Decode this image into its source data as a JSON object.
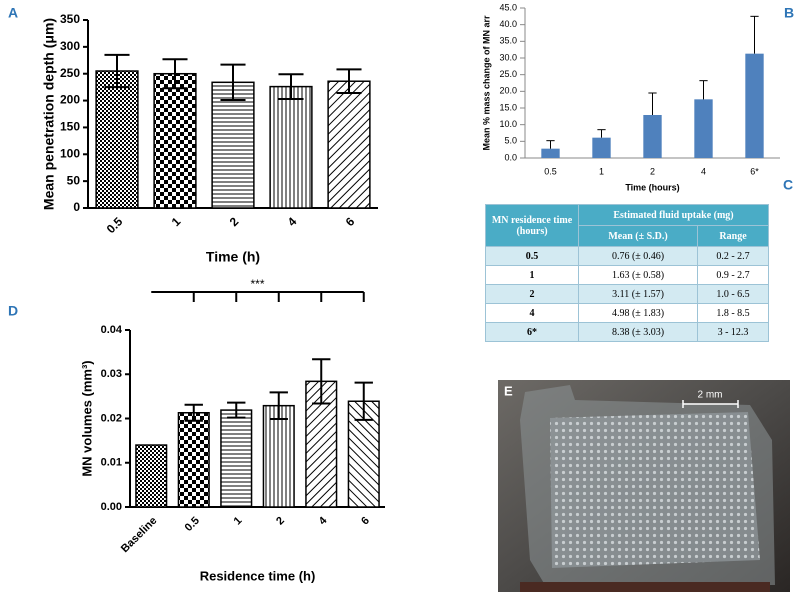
{
  "chart_data": [
    {
      "type": "bar",
      "panel": "A",
      "categories": [
        "0.5",
        "1",
        "2",
        "4",
        "6"
      ],
      "values": [
        255,
        250,
        234,
        226,
        236
      ],
      "errors": [
        30,
        27,
        33,
        23,
        22
      ],
      "ylim": [
        0,
        350
      ],
      "yticks": [
        0,
        50,
        100,
        150,
        200,
        250,
        300,
        350
      ],
      "ylabel": "Mean penetration depth (μm)",
      "xlabel": "Time (h)"
    },
    {
      "type": "bar",
      "panel": "B",
      "categories": [
        "0.5",
        "1",
        "2",
        "4",
        "6*"
      ],
      "values": [
        2.8,
        6.1,
        12.9,
        17.6,
        31.3
      ],
      "errors": [
        2.4,
        2.4,
        6.6,
        5.6,
        11.2
      ],
      "color": "#4f81bd",
      "ylim": [
        0,
        45
      ],
      "yticks": [
        {
          "value": 0,
          "label": "0.0"
        },
        {
          "value": 5,
          "label": "5.0"
        },
        {
          "value": 10,
          "label": "10.0"
        },
        {
          "value": 15,
          "label": "15.0"
        },
        {
          "value": 20,
          "label": "20.0"
        },
        {
          "value": 25,
          "label": "25.0"
        },
        {
          "value": 30,
          "label": "30.0"
        },
        {
          "value": 35,
          "label": "35.0"
        },
        {
          "value": 40,
          "label": "40.0"
        },
        {
          "value": 45,
          "label": "45.0"
        }
      ],
      "ylabel": "Mean % mass change of MN arr",
      "xlabel": "Time (hours)"
    },
    {
      "type": "bar",
      "panel": "D",
      "categories": [
        "Baseline",
        "0.5",
        "1",
        "2",
        "4",
        "6"
      ],
      "values": [
        0.014,
        0.0213,
        0.0219,
        0.0229,
        0.0284,
        0.0239
      ],
      "errors": [
        null,
        0.0018,
        0.0017,
        0.003,
        0.005,
        0.0042
      ],
      "ylim": [
        0,
        0.04
      ],
      "yticks": [
        {
          "value": 0,
          "label": "0.00"
        },
        0.01,
        0.02,
        0.03,
        0.04
      ],
      "ylabel": "MN volumes (mm³)",
      "xlabel": "Residence time (h)",
      "annotation": "***"
    }
  ],
  "table": {
    "panel": "C",
    "header": [
      "MN residence time (hours)",
      "Estimated fluid uptake (mg)"
    ],
    "subheader": [
      "Mean (± S.D.)",
      "Range"
    ],
    "rows": [
      [
        "0.5",
        "0.76 (± 0.46)",
        "0.2 - 2.7"
      ],
      [
        "1",
        "1.63 (± 0.58)",
        "0.9 - 2.7"
      ],
      [
        "2",
        "3.11 (± 1.57)",
        "1.0 - 6.5"
      ],
      [
        "4",
        "4.98 (± 1.83)",
        "1.8 - 8.5"
      ],
      [
        "6*",
        "8.38 (± 3.03)",
        "3 - 12.3"
      ]
    ]
  },
  "photo": {
    "panel": "E",
    "scale_bar": "2 mm"
  }
}
